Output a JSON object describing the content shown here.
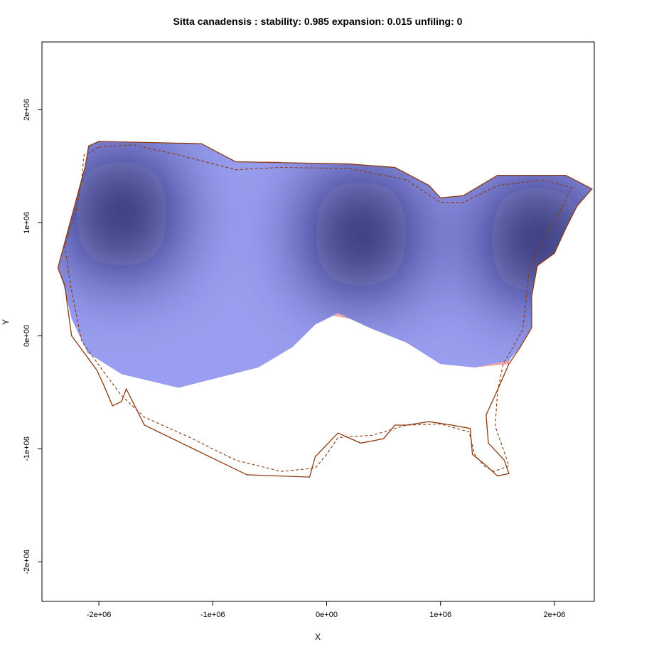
{
  "chart_data": {
    "type": "heatmap",
    "title": "Sitta canadensis : stability: 0.985 expansion: 0.015 unfiling: 0",
    "xlabel": "X",
    "ylabel": "Y",
    "xlim": [
      -2500000,
      2350000
    ],
    "ylim": [
      -2350000,
      2600000
    ],
    "x_ticks": [
      {
        "value": -2000000,
        "label": "-2e+06"
      },
      {
        "value": -1000000,
        "label": "-1e+06"
      },
      {
        "value": 0,
        "label": "0e+00"
      },
      {
        "value": 1000000,
        "label": "1e+06"
      },
      {
        "value": 2000000,
        "label": "2e+06"
      }
    ],
    "y_ticks": [
      {
        "value": -2000000,
        "label": "-2e+06"
      },
      {
        "value": -1000000,
        "label": "-1e+06"
      },
      {
        "value": 0,
        "label": "0e+00"
      },
      {
        "value": 1000000,
        "label": "1e+06"
      },
      {
        "value": 2000000,
        "label": "2e+06"
      }
    ],
    "grid": false,
    "colors": {
      "density_low": "#9a9ef0",
      "density_high": "#0a0a4e",
      "expansion": "#f0a8a8",
      "expansion_strong": "#f28870",
      "outline": "#8b3a0e"
    },
    "density_hotspots": [
      {
        "x": -1800000,
        "y": 1080000,
        "intensity": 1.0
      },
      {
        "x": 300000,
        "y": 900000,
        "intensity": 1.0
      },
      {
        "x": 1850000,
        "y": 850000,
        "intensity": 1.0
      }
    ],
    "stable_region_outline": [
      [
        -2090000,
        1680000
      ],
      [
        -2000000,
        1720000
      ],
      [
        -1100000,
        1700000
      ],
      [
        -800000,
        1540000
      ],
      [
        200000,
        1520000
      ],
      [
        600000,
        1490000
      ],
      [
        900000,
        1330000
      ],
      [
        1000000,
        1220000
      ],
      [
        1200000,
        1240000
      ],
      [
        1500000,
        1420000
      ],
      [
        2100000,
        1420000
      ],
      [
        2330000,
        1300000
      ],
      [
        2200000,
        1150000
      ],
      [
        2100000,
        950000
      ],
      [
        2000000,
        730000
      ],
      [
        1850000,
        620000
      ],
      [
        1800000,
        350000
      ],
      [
        1800000,
        70000
      ],
      [
        1700000,
        -100000
      ],
      [
        1600000,
        -220000
      ],
      [
        1300000,
        -280000
      ],
      [
        1000000,
        -250000
      ],
      [
        700000,
        -60000
      ],
      [
        400000,
        60000
      ],
      [
        100000,
        200000
      ],
      [
        -100000,
        100000
      ],
      [
        -300000,
        -100000
      ],
      [
        -600000,
        -280000
      ],
      [
        -1300000,
        -460000
      ],
      [
        -1800000,
        -340000
      ],
      [
        -2100000,
        -150000
      ],
      [
        -2240000,
        150000
      ],
      [
        -2310000,
        450000
      ],
      [
        -2360000,
        600000
      ],
      [
        -2280000,
        900000
      ],
      [
        -2200000,
        1200000
      ],
      [
        -2120000,
        1500000
      ]
    ],
    "expansion_band_outline": [
      [
        -2100000,
        10000
      ],
      [
        -1800000,
        -200000
      ],
      [
        -1500000,
        -300000
      ],
      [
        -1000000,
        -310000
      ],
      [
        -600000,
        -160000
      ],
      [
        -300000,
        100000
      ],
      [
        0,
        190000
      ],
      [
        300000,
        130000
      ],
      [
        700000,
        20000
      ],
      [
        1000000,
        -120000
      ],
      [
        1300000,
        -150000
      ],
      [
        1630000,
        -100000
      ],
      [
        1600000,
        -250000
      ],
      [
        1300000,
        -280000
      ],
      [
        1000000,
        -250000
      ],
      [
        700000,
        -60000
      ],
      [
        400000,
        60000
      ],
      [
        100000,
        200000
      ],
      [
        -100000,
        100000
      ],
      [
        -300000,
        -100000
      ],
      [
        -600000,
        -280000
      ],
      [
        -1300000,
        -460000
      ],
      [
        -1800000,
        -340000
      ]
    ],
    "expansion_patch": {
      "x": [
        -600000,
        -400000
      ],
      "y": [
        1500000,
        1540000
      ]
    },
    "range_outline_solid": [
      [
        -2090000,
        1680000
      ],
      [
        -2000000,
        1720000
      ],
      [
        -1100000,
        1700000
      ],
      [
        -800000,
        1540000
      ],
      [
        200000,
        1520000
      ],
      [
        600000,
        1490000
      ],
      [
        900000,
        1330000
      ],
      [
        1000000,
        1220000
      ],
      [
        1200000,
        1240000
      ],
      [
        1500000,
        1420000
      ],
      [
        2100000,
        1420000
      ],
      [
        2330000,
        1300000
      ],
      [
        2200000,
        1150000
      ],
      [
        2100000,
        950000
      ],
      [
        2000000,
        730000
      ],
      [
        1850000,
        620000
      ],
      [
        1800000,
        350000
      ],
      [
        1800000,
        70000
      ],
      [
        1700000,
        -100000
      ],
      [
        1600000,
        -250000
      ],
      [
        1500000,
        -480000
      ],
      [
        1400000,
        -700000
      ],
      [
        1420000,
        -950000
      ],
      [
        1560000,
        -1100000
      ],
      [
        1600000,
        -1220000
      ],
      [
        1500000,
        -1240000
      ],
      [
        1380000,
        -1130000
      ],
      [
        1280000,
        -1050000
      ],
      [
        1260000,
        -820000
      ],
      [
        1100000,
        -790000
      ],
      [
        900000,
        -760000
      ],
      [
        700000,
        -790000
      ],
      [
        600000,
        -790000
      ],
      [
        500000,
        -910000
      ],
      [
        300000,
        -950000
      ],
      [
        100000,
        -860000
      ],
      [
        -100000,
        -1070000
      ],
      [
        -150000,
        -1250000
      ],
      [
        -700000,
        -1230000
      ],
      [
        -1150000,
        -1010000
      ],
      [
        -1600000,
        -790000
      ],
      [
        -1760000,
        -470000
      ],
      [
        -1800000,
        -580000
      ],
      [
        -1880000,
        -620000
      ],
      [
        -1960000,
        -430000
      ],
      [
        -2020000,
        -300000
      ],
      [
        -2240000,
        0
      ],
      [
        -2300000,
        450000
      ],
      [
        -2360000,
        600000
      ],
      [
        -2280000,
        900000
      ],
      [
        -2200000,
        1200000
      ],
      [
        -2120000,
        1500000
      ]
    ],
    "range_outline_dashed": [
      [
        -2000000,
        1670000
      ],
      [
        -1700000,
        1690000
      ],
      [
        -1300000,
        1600000
      ],
      [
        -800000,
        1470000
      ],
      [
        -400000,
        1490000
      ],
      [
        200000,
        1480000
      ],
      [
        700000,
        1380000
      ],
      [
        1000000,
        1180000
      ],
      [
        1200000,
        1180000
      ],
      [
        1500000,
        1330000
      ],
      [
        1900000,
        1380000
      ],
      [
        2150000,
        1310000
      ],
      [
        2050000,
        1100000
      ],
      [
        1900000,
        850000
      ],
      [
        1780000,
        600000
      ],
      [
        1750000,
        300000
      ],
      [
        1720000,
        50000
      ],
      [
        1550000,
        -250000
      ],
      [
        1500000,
        -500000
      ],
      [
        1480000,
        -800000
      ],
      [
        1550000,
        -1000000
      ],
      [
        1600000,
        -1150000
      ],
      [
        1470000,
        -1200000
      ],
      [
        1380000,
        -1150000
      ],
      [
        1300000,
        -1050000
      ],
      [
        1250000,
        -850000
      ],
      [
        1000000,
        -780000
      ],
      [
        700000,
        -790000
      ],
      [
        400000,
        -880000
      ],
      [
        100000,
        -900000
      ],
      [
        0,
        -1050000
      ],
      [
        -100000,
        -1170000
      ],
      [
        -400000,
        -1200000
      ],
      [
        -800000,
        -1100000
      ],
      [
        -1200000,
        -900000
      ],
      [
        -1600000,
        -720000
      ],
      [
        -1800000,
        -530000
      ],
      [
        -1950000,
        -330000
      ],
      [
        -2150000,
        -50000
      ],
      [
        -2250000,
        450000
      ],
      [
        -2300000,
        800000
      ],
      [
        -2200000,
        1100000
      ],
      [
        -2150000,
        1400000
      ],
      [
        -2130000,
        1600000
      ]
    ]
  }
}
